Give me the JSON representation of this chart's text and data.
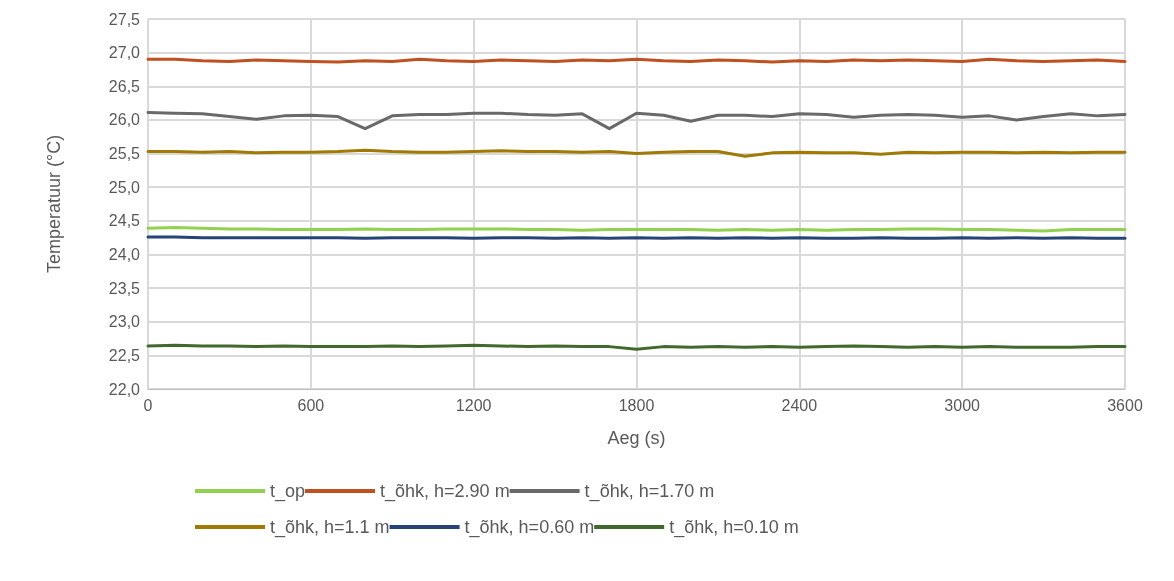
{
  "chart_data": {
    "type": "line",
    "xlabel": "Aeg (s)",
    "ylabel": "Temperatuur (°C)",
    "x": [
      0,
      100,
      200,
      300,
      400,
      500,
      600,
      700,
      800,
      900,
      1000,
      1100,
      1200,
      1300,
      1400,
      1500,
      1600,
      1700,
      1800,
      1900,
      2000,
      2100,
      2200,
      2300,
      2400,
      2500,
      2600,
      2700,
      2800,
      2900,
      3000,
      3100,
      3200,
      3300,
      3400,
      3500,
      3600
    ],
    "xlim": [
      0,
      3600
    ],
    "xticks": [
      0,
      600,
      1200,
      1800,
      2400,
      3000,
      3600
    ],
    "ylim": [
      22,
      27.5
    ],
    "yticks": [
      {
        "value": 22,
        "label": "22,0"
      },
      {
        "value": 22.5,
        "label": "22,5"
      },
      {
        "value": 23,
        "label": "23,0"
      },
      {
        "value": 23.5,
        "label": "23,5"
      },
      {
        "value": 24,
        "label": "24,0"
      },
      {
        "value": 24.5,
        "label": "24,5"
      },
      {
        "value": 25,
        "label": "25,0"
      },
      {
        "value": 25.5,
        "label": "25,5"
      },
      {
        "value": 26,
        "label": "26,0"
      },
      {
        "value": 26.5,
        "label": "26,5"
      },
      {
        "value": 27,
        "label": "27,0"
      },
      {
        "value": 27.5,
        "label": "27,5"
      }
    ],
    "grid": true,
    "legend": "bottom",
    "marker": "none",
    "line_style": "solid",
    "series": [
      {
        "name": "t_op",
        "color": "#92d050",
        "values": [
          24.39,
          24.4,
          24.39,
          24.38,
          24.38,
          24.37,
          24.37,
          24.37,
          24.38,
          24.37,
          24.37,
          24.38,
          24.38,
          24.38,
          24.37,
          24.37,
          24.36,
          24.37,
          24.37,
          24.37,
          24.37,
          24.36,
          24.37,
          24.36,
          24.37,
          24.36,
          24.37,
          24.37,
          24.38,
          24.38,
          24.37,
          24.37,
          24.36,
          24.35,
          24.37,
          24.37,
          24.37
        ]
      },
      {
        "name": "t_õhk, h=2.90 m",
        "color": "#c0501f",
        "values": [
          26.9,
          26.9,
          26.88,
          26.87,
          26.89,
          26.88,
          26.87,
          26.86,
          26.88,
          26.87,
          26.9,
          26.88,
          26.87,
          26.89,
          26.88,
          26.87,
          26.89,
          26.88,
          26.9,
          26.88,
          26.87,
          26.89,
          26.88,
          26.86,
          26.88,
          26.87,
          26.89,
          26.88,
          26.89,
          26.88,
          26.87,
          26.9,
          26.88,
          26.87,
          26.88,
          26.89,
          26.87
        ]
      },
      {
        "name": "t_õhk, h=1.70 m",
        "color": "#696969",
        "values": [
          26.11,
          26.1,
          26.09,
          26.05,
          26.01,
          26.06,
          26.07,
          26.05,
          25.87,
          26.06,
          26.08,
          26.08,
          26.1,
          26.1,
          26.08,
          26.07,
          26.09,
          25.87,
          26.1,
          26.07,
          25.98,
          26.07,
          26.07,
          26.05,
          26.09,
          26.08,
          26.04,
          26.07,
          26.08,
          26.07,
          26.04,
          26.06,
          26.0,
          26.05,
          26.09,
          26.06,
          26.08
        ]
      },
      {
        "name": "t_õhk, h=1.1 m",
        "color": "#a07a05",
        "values": [
          25.53,
          25.53,
          25.52,
          25.53,
          25.51,
          25.52,
          25.52,
          25.53,
          25.55,
          25.53,
          25.52,
          25.52,
          25.53,
          25.54,
          25.53,
          25.53,
          25.52,
          25.53,
          25.5,
          25.52,
          25.53,
          25.53,
          25.46,
          25.51,
          25.52,
          25.51,
          25.51,
          25.49,
          25.52,
          25.51,
          25.52,
          25.52,
          25.51,
          25.52,
          25.51,
          25.52,
          25.52
        ]
      },
      {
        "name": "t_õhk, h=0.60 m",
        "color": "#264478",
        "values": [
          24.26,
          24.26,
          24.25,
          24.25,
          24.25,
          24.25,
          24.25,
          24.25,
          24.24,
          24.25,
          24.25,
          24.25,
          24.24,
          24.25,
          24.25,
          24.24,
          24.25,
          24.24,
          24.25,
          24.24,
          24.25,
          24.24,
          24.25,
          24.24,
          24.25,
          24.24,
          24.24,
          24.25,
          24.24,
          24.24,
          24.25,
          24.24,
          24.25,
          24.24,
          24.25,
          24.24,
          24.24
        ]
      },
      {
        "name": "t_õhk, h=0.10 m",
        "color": "#43682b",
        "values": [
          22.64,
          22.65,
          22.64,
          22.64,
          22.63,
          22.64,
          22.63,
          22.63,
          22.63,
          22.64,
          22.63,
          22.64,
          22.65,
          22.64,
          22.63,
          22.64,
          22.63,
          22.63,
          22.59,
          22.63,
          22.62,
          22.63,
          22.62,
          22.63,
          22.62,
          22.63,
          22.64,
          22.63,
          22.62,
          22.63,
          22.62,
          22.63,
          22.62,
          22.62,
          22.62,
          22.63,
          22.63
        ]
      }
    ]
  }
}
